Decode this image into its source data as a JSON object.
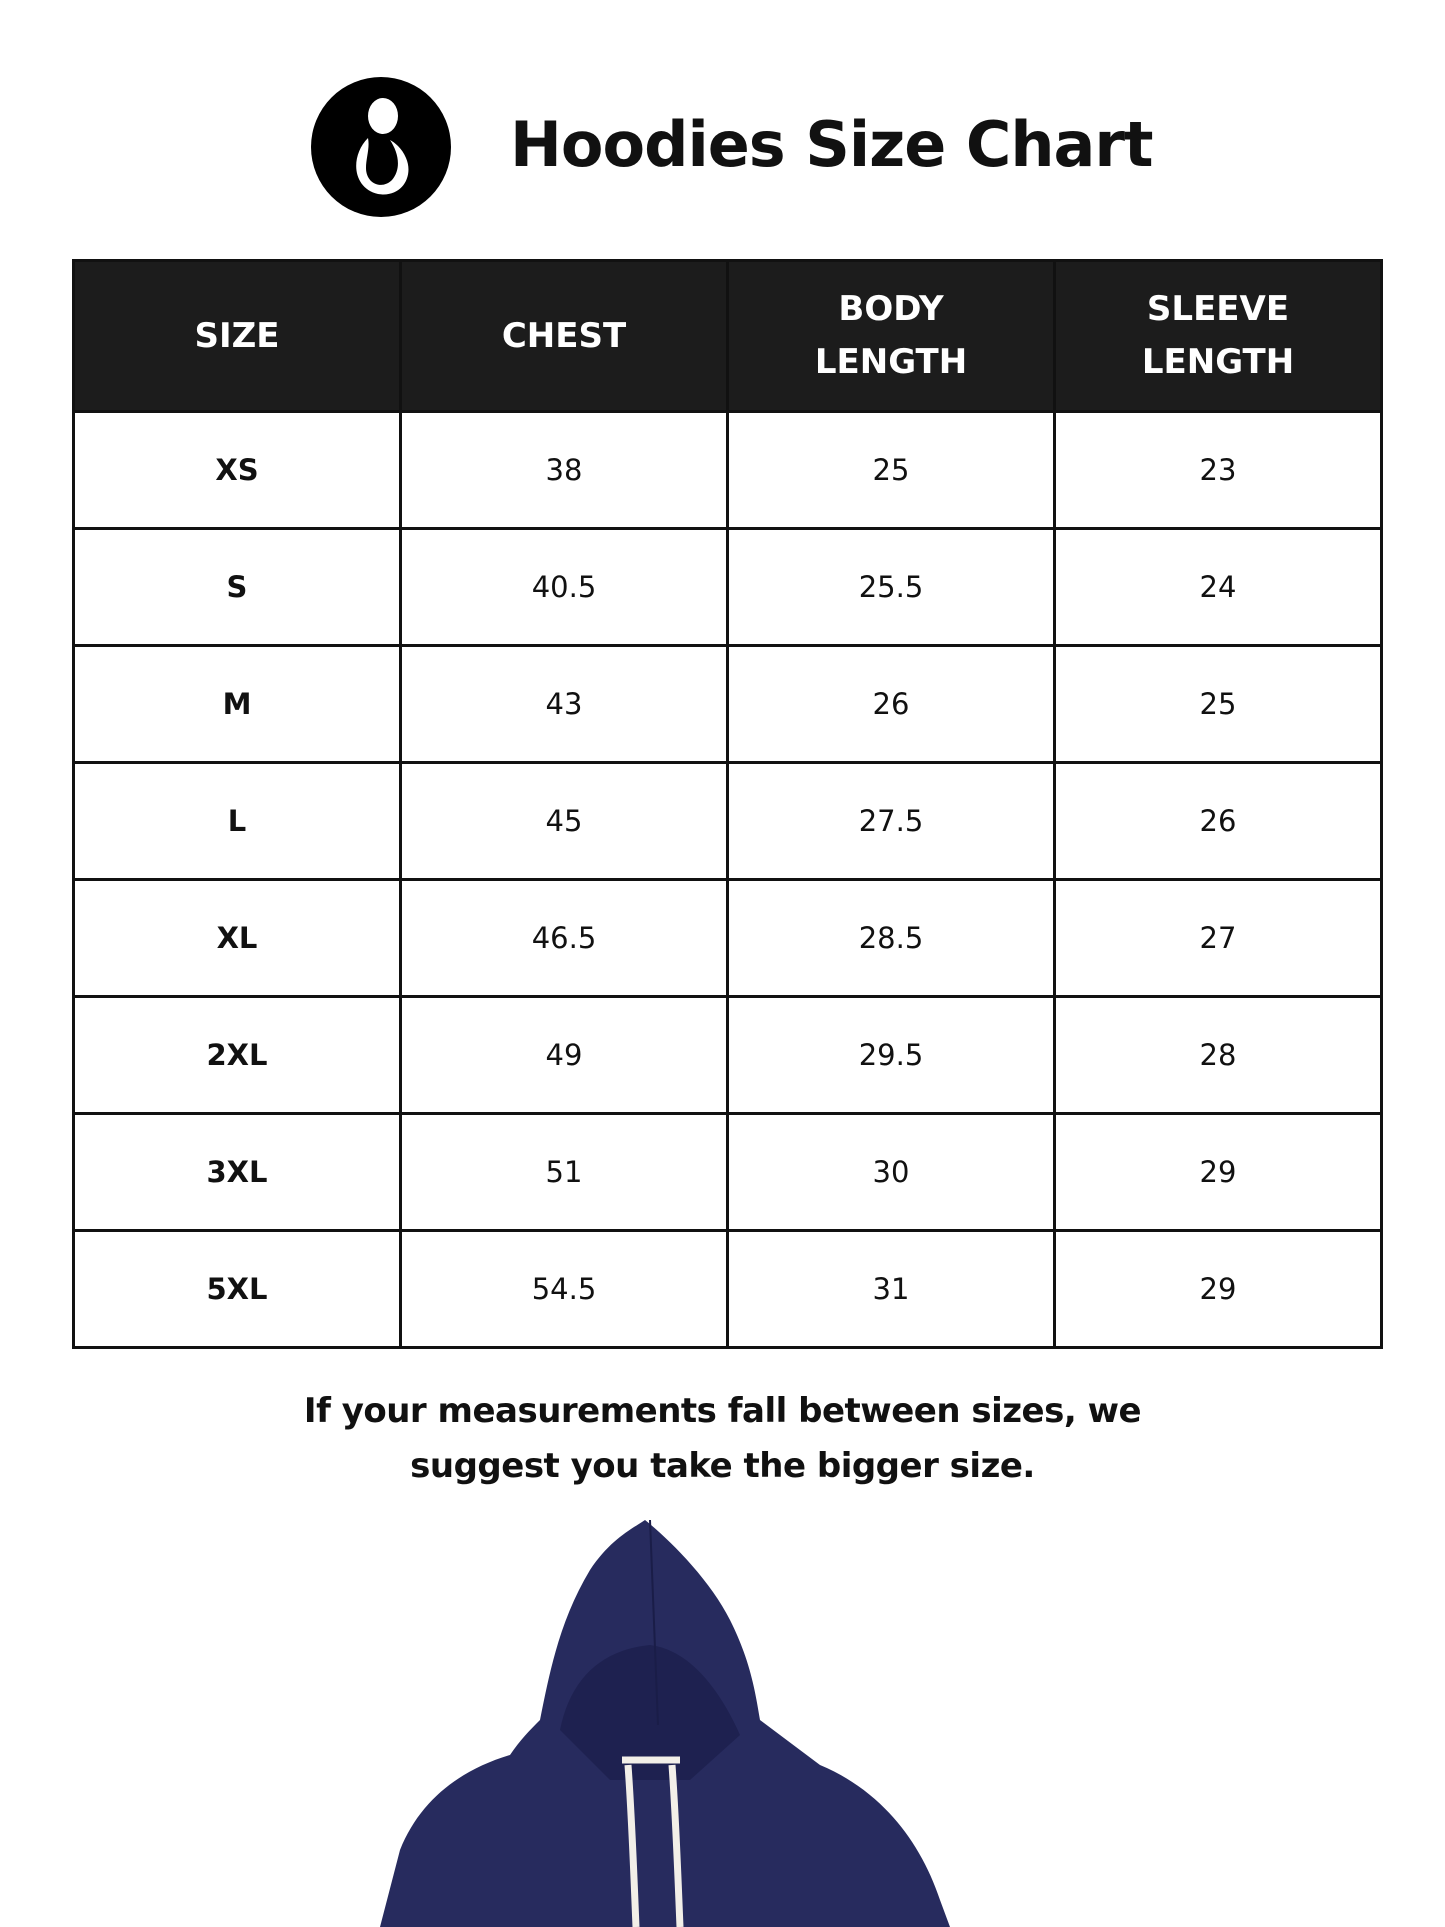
{
  "header": {
    "title": "Hoodies Size Chart",
    "logo_icon": "mother-and-child-logo"
  },
  "table": {
    "columns": [
      {
        "line1": "SIZE",
        "line2": ""
      },
      {
        "line1": "CHEST",
        "line2": ""
      },
      {
        "line1": "BODY",
        "line2": "LENGTH"
      },
      {
        "line1": "SLEEVE",
        "line2": "LENGTH"
      }
    ],
    "rows": [
      [
        "XS",
        "38",
        "25",
        "23"
      ],
      [
        "S",
        "40.5",
        "25.5",
        "24"
      ],
      [
        "M",
        "43",
        "26",
        "25"
      ],
      [
        "L",
        "45",
        "27.5",
        "26"
      ],
      [
        "XL",
        "46.5",
        "28.5",
        "27"
      ],
      [
        "2XL",
        "49",
        "29.5",
        "28"
      ],
      [
        "3XL",
        "51",
        "30",
        "29"
      ],
      [
        "5XL",
        "54.5",
        "31",
        "29"
      ]
    ]
  },
  "note": {
    "line1": "If your measurements fall between sizes, we",
    "line2": "suggest you take the bigger size."
  },
  "colors": {
    "header_bg": "#1c1c1c",
    "hoodie": "#272b5e"
  }
}
